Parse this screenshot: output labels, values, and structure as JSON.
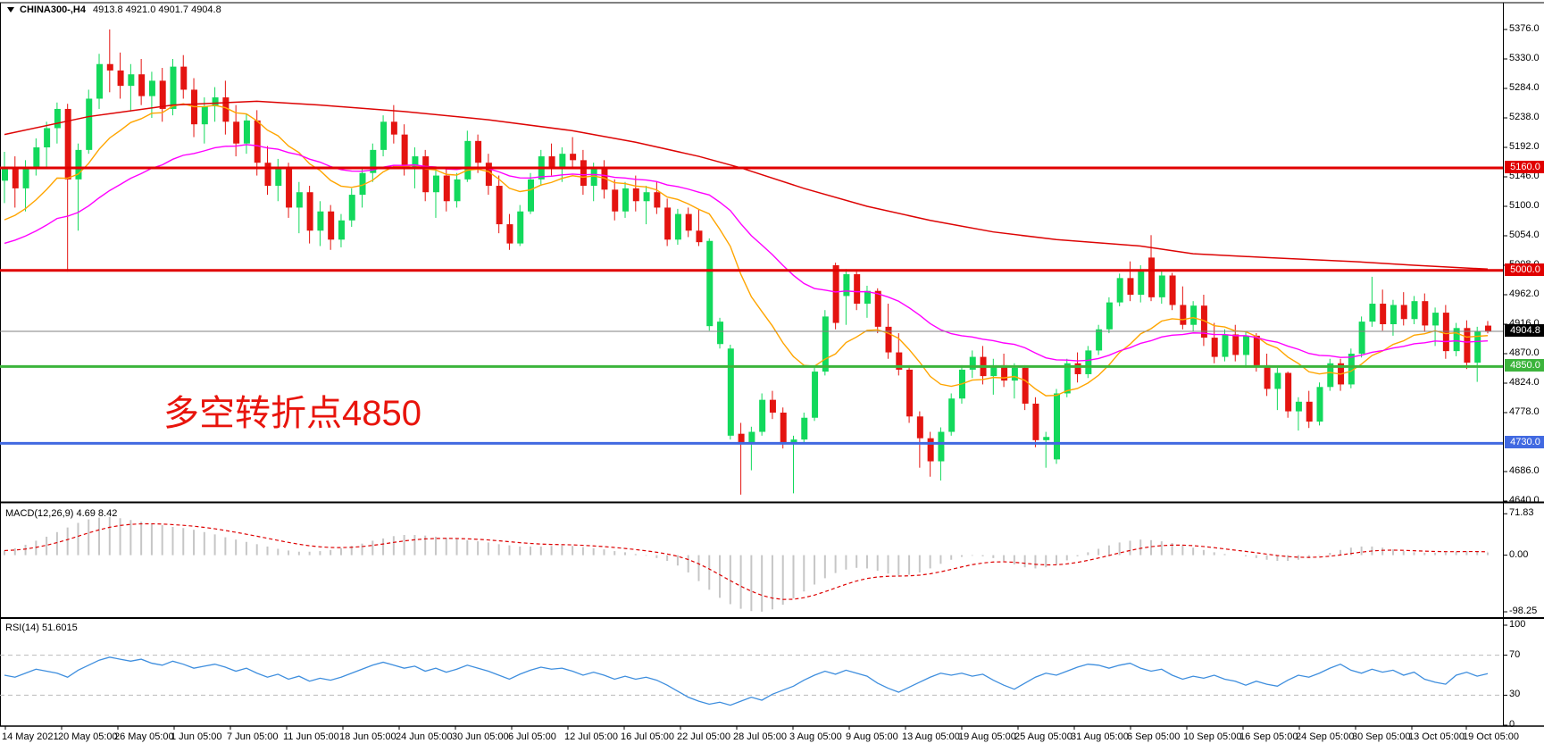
{
  "window": {
    "symbol_title": "CHINA300-,H4",
    "ohlc_readout": "4913.8 4921.0 4901.7 4904.8"
  },
  "annotation": {
    "text": "多空转折点4850"
  },
  "colors": {
    "bull": "#12d95c",
    "bear": "#e41410",
    "ma_fast": "#ffa500",
    "ma_mid": "#ff00ff",
    "ma_slow": "#dd0404",
    "level_red": "#e00000",
    "level_green": "#3cb43c",
    "level_blue": "#4169e1",
    "price_line": "#808080",
    "badge_price_bg": "#000000",
    "macd_hist": "#c6c6c6",
    "macd_signal": "#dd0000",
    "rsi_line": "#3e8ede",
    "rsi_level_dash": "#bbbbbb",
    "annotation_red": "#e8140c"
  },
  "chart_data": {
    "type": "candlestick",
    "symbol": "CHINA300-",
    "timeframe": "H4",
    "last_ohlc": {
      "open": 4913.8,
      "high": 4921.0,
      "low": 4901.7,
      "close": 4904.8
    },
    "price_ticks": [
      {
        "v": 5376,
        "t": "5376.0"
      },
      {
        "v": 5330,
        "t": "5330.0"
      },
      {
        "v": 5284,
        "t": "5284.0"
      },
      {
        "v": 5238,
        "t": "5238.0"
      },
      {
        "v": 5192,
        "t": "5192.0"
      },
      {
        "v": 5146,
        "t": "5146.0"
      },
      {
        "v": 5100,
        "t": "5100.0"
      },
      {
        "v": 5054,
        "t": "5054.0"
      },
      {
        "v": 5008,
        "t": "5008.0"
      },
      {
        "v": 4962,
        "t": "4962.0"
      },
      {
        "v": 4916,
        "t": "4916.0"
      },
      {
        "v": 4870,
        "t": "4870.0"
      },
      {
        "v": 4824,
        "t": "4824.0"
      },
      {
        "v": 4778,
        "t": "4778.0"
      },
      {
        "v": 4686,
        "t": "4686.0"
      },
      {
        "v": 4640,
        "t": "4640.0"
      }
    ],
    "hlines": [
      {
        "value": 5160.0,
        "label": "5160.0",
        "color": "#e00000",
        "width": 3,
        "badge_bg": "#e00000"
      },
      {
        "value": 5000.0,
        "label": "5000.0",
        "color": "#e00000",
        "width": 3,
        "badge_bg": "#e00000"
      },
      {
        "value": 4850.0,
        "label": "4850.0",
        "color": "#3cb43c",
        "width": 3,
        "badge_bg": "#3cb43c"
      },
      {
        "value": 4730.0,
        "label": "4730.0",
        "color": "#4169e1",
        "width": 3,
        "badge_bg": "#4169e1"
      }
    ],
    "current_price": {
      "value": 4904.8,
      "label": "4904.8",
      "line_color": "#808080",
      "badge_bg": "#000000"
    },
    "candles": [
      [
        5140,
        5185,
        5105,
        5162
      ],
      [
        5162,
        5178,
        5098,
        5128
      ],
      [
        5128,
        5172,
        5092,
        5160
      ],
      [
        5160,
        5206,
        5148,
        5192
      ],
      [
        5192,
        5232,
        5158,
        5222
      ],
      [
        5222,
        5262,
        5198,
        5252
      ],
      [
        5252,
        5260,
        4998,
        5142
      ],
      [
        5142,
        5198,
        5062,
        5188
      ],
      [
        5188,
        5282,
        5182,
        5268
      ],
      [
        5268,
        5338,
        5252,
        5322
      ],
      [
        5322,
        5376,
        5278,
        5312
      ],
      [
        5312,
        5340,
        5268,
        5288
      ],
      [
        5288,
        5322,
        5248,
        5306
      ],
      [
        5306,
        5330,
        5258,
        5272
      ],
      [
        5272,
        5310,
        5238,
        5296
      ],
      [
        5296,
        5316,
        5232,
        5252
      ],
      [
        5252,
        5330,
        5242,
        5318
      ],
      [
        5318,
        5336,
        5268,
        5282
      ],
      [
        5282,
        5300,
        5208,
        5228
      ],
      [
        5228,
        5270,
        5198,
        5256
      ],
      [
        5256,
        5286,
        5232,
        5270
      ],
      [
        5270,
        5296,
        5212,
        5232
      ],
      [
        5232,
        5258,
        5178,
        5198
      ],
      [
        5198,
        5244,
        5182,
        5234
      ],
      [
        5234,
        5250,
        5148,
        5168
      ],
      [
        5168,
        5194,
        5118,
        5132
      ],
      [
        5132,
        5174,
        5108,
        5158
      ],
      [
        5158,
        5168,
        5082,
        5098
      ],
      [
        5098,
        5138,
        5058,
        5122
      ],
      [
        5122,
        5132,
        5042,
        5062
      ],
      [
        5062,
        5108,
        5038,
        5092
      ],
      [
        5092,
        5102,
        5032,
        5048
      ],
      [
        5048,
        5088,
        5036,
        5078
      ],
      [
        5078,
        5128,
        5068,
        5118
      ],
      [
        5118,
        5162,
        5098,
        5152
      ],
      [
        5152,
        5198,
        5138,
        5188
      ],
      [
        5188,
        5242,
        5178,
        5232
      ],
      [
        5232,
        5258,
        5198,
        5212
      ],
      [
        5212,
        5228,
        5148,
        5162
      ],
      [
        5162,
        5192,
        5128,
        5178
      ],
      [
        5178,
        5188,
        5108,
        5122
      ],
      [
        5122,
        5158,
        5082,
        5148
      ],
      [
        5148,
        5162,
        5092,
        5108
      ],
      [
        5108,
        5152,
        5098,
        5142
      ],
      [
        5142,
        5218,
        5138,
        5202
      ],
      [
        5202,
        5212,
        5152,
        5168
      ],
      [
        5168,
        5182,
        5118,
        5132
      ],
      [
        5132,
        5148,
        5058,
        5072
      ],
      [
        5072,
        5088,
        5032,
        5042
      ],
      [
        5042,
        5102,
        5038,
        5092
      ],
      [
        5092,
        5152,
        5088,
        5142
      ],
      [
        5142,
        5188,
        5132,
        5178
      ],
      [
        5178,
        5198,
        5148,
        5162
      ],
      [
        5162,
        5192,
        5138,
        5182
      ],
      [
        5182,
        5208,
        5158,
        5172
      ],
      [
        5172,
        5188,
        5118,
        5132
      ],
      [
        5132,
        5168,
        5108,
        5158
      ],
      [
        5158,
        5172,
        5112,
        5126
      ],
      [
        5126,
        5142,
        5078,
        5092
      ],
      [
        5092,
        5138,
        5082,
        5128
      ],
      [
        5128,
        5148,
        5092,
        5108
      ],
      [
        5108,
        5132,
        5072,
        5122
      ],
      [
        5122,
        5138,
        5088,
        5098
      ],
      [
        5098,
        5112,
        5038,
        5048
      ],
      [
        5048,
        5096,
        5040,
        5088
      ],
      [
        5088,
        5098,
        5052,
        5062
      ],
      [
        5062,
        5096,
        5038,
        5044
      ],
      [
        4913,
        5050,
        4906,
        5046
      ],
      [
        4885,
        4926,
        4878,
        4920
      ],
      [
        4742,
        4884,
        4736,
        4878
      ],
      [
        4745,
        4762,
        4650,
        4732
      ],
      [
        4732,
        4756,
        4688,
        4748
      ],
      [
        4748,
        4808,
        4742,
        4798
      ],
      [
        4798,
        4812,
        4768,
        4778
      ],
      [
        4778,
        4786,
        4722,
        4730
      ],
      [
        4730,
        4742,
        4652,
        4736
      ],
      [
        4736,
        4778,
        4730,
        4770
      ],
      [
        4770,
        4852,
        4765,
        4842
      ],
      [
        4842,
        4938,
        4836,
        4928
      ],
      [
        5008,
        5012,
        4908,
        4918
      ],
      [
        4960,
        5002,
        4915,
        4994
      ],
      [
        4994,
        4998,
        4938,
        4948
      ],
      [
        4948,
        4976,
        4926,
        4968
      ],
      [
        4968,
        4972,
        4902,
        4912
      ],
      [
        4912,
        4948,
        4862,
        4872
      ],
      [
        4872,
        4902,
        4836,
        4845
      ],
      [
        4845,
        4852,
        4762,
        4772
      ],
      [
        4772,
        4780,
        4692,
        4738
      ],
      [
        4738,
        4748,
        4678,
        4702
      ],
      [
        4702,
        4755,
        4672,
        4748
      ],
      [
        4748,
        4808,
        4742,
        4800
      ],
      [
        4800,
        4852,
        4792,
        4845
      ],
      [
        4845,
        4875,
        4832,
        4865
      ],
      [
        4865,
        4882,
        4822,
        4835
      ],
      [
        4835,
        4862,
        4806,
        4852
      ],
      [
        4852,
        4870,
        4818,
        4828
      ],
      [
        4828,
        4855,
        4800,
        4848
      ],
      [
        4848,
        4852,
        4782,
        4792
      ],
      [
        4792,
        4802,
        4724,
        4735
      ],
      [
        4735,
        4748,
        4692,
        4740
      ],
      [
        4705,
        4815,
        4698,
        4808
      ],
      [
        4808,
        4862,
        4802,
        4855
      ],
      [
        4855,
        4872,
        4825,
        4838
      ],
      [
        4838,
        4882,
        4832,
        4875
      ],
      [
        4875,
        4915,
        4868,
        4908
      ],
      [
        4908,
        4958,
        4902,
        4950
      ],
      [
        4950,
        4995,
        4944,
        4988
      ],
      [
        4988,
        5014,
        4952,
        4962
      ],
      [
        4962,
        5008,
        4950,
        4998
      ],
      [
        5020,
        5055,
        4952,
        4958
      ],
      [
        4958,
        5000,
        4948,
        4992
      ],
      [
        4992,
        4996,
        4938,
        4946
      ],
      [
        4946,
        4975,
        4908,
        4915
      ],
      [
        4915,
        4952,
        4905,
        4945
      ],
      [
        4945,
        4962,
        4882,
        4895
      ],
      [
        4895,
        4918,
        4855,
        4865
      ],
      [
        4865,
        4908,
        4858,
        4900
      ],
      [
        4900,
        4915,
        4858,
        4868
      ],
      [
        4868,
        4905,
        4848,
        4898
      ],
      [
        4898,
        4902,
        4842,
        4852
      ],
      [
        4852,
        4870,
        4804,
        4815
      ],
      [
        4815,
        4848,
        4782,
        4840
      ],
      [
        4840,
        4842,
        4770,
        4780
      ],
      [
        4780,
        4802,
        4750,
        4795
      ],
      [
        4795,
        4812,
        4754,
        4764
      ],
      [
        4764,
        4825,
        4758,
        4818
      ],
      [
        4818,
        4862,
        4812,
        4855
      ],
      [
        4855,
        4862,
        4812,
        4822
      ],
      [
        4822,
        4878,
        4816,
        4870
      ],
      [
        4870,
        4928,
        4864,
        4920
      ],
      [
        4920,
        4990,
        4912,
        4948
      ],
      [
        4948,
        4970,
        4906,
        4916
      ],
      [
        4916,
        4954,
        4898,
        4946
      ],
      [
        4946,
        4966,
        4914,
        4924
      ],
      [
        4924,
        4960,
        4916,
        4952
      ],
      [
        4952,
        4964,
        4904,
        4914
      ],
      [
        4914,
        4942,
        4882,
        4934
      ],
      [
        4934,
        4946,
        4862,
        4874
      ],
      [
        4874,
        4918,
        4866,
        4910
      ],
      [
        4910,
        4922,
        4846,
        4856
      ],
      [
        4856,
        4912,
        4826,
        4905
      ],
      [
        4913.8,
        4921.0,
        4901.7,
        4904.8
      ]
    ],
    "ma_slow_waypoints": [
      [
        0,
        5212
      ],
      [
        8,
        5240
      ],
      [
        16,
        5258
      ],
      [
        24,
        5264
      ],
      [
        30,
        5258
      ],
      [
        38,
        5248
      ],
      [
        46,
        5235
      ],
      [
        54,
        5218
      ],
      [
        60,
        5200
      ],
      [
        66,
        5178
      ],
      [
        70,
        5160
      ],
      [
        76,
        5128
      ],
      [
        82,
        5100
      ],
      [
        88,
        5078
      ],
      [
        94,
        5060
      ],
      [
        100,
        5048
      ],
      [
        108,
        5038
      ],
      [
        113,
        5026
      ],
      [
        120,
        5020
      ],
      [
        128,
        5014
      ],
      [
        134,
        5008
      ],
      [
        141,
        5002
      ]
    ],
    "ema_fast_period": 13,
    "ema_fast_seed": 5065,
    "ema_mid_period": 34,
    "ema_mid_seed": 5035,
    "macd": {
      "label": "MACD(12,26,9) 4.69 8.42",
      "main_value": 4.69,
      "signal_value": 8.42,
      "ticks": [
        {
          "v": 71.83,
          "t": "71.83"
        },
        {
          "v": 0,
          "t": "0.00"
        },
        {
          "v": -98.25,
          "t": "-98.25"
        }
      ],
      "signal_period": 9,
      "hist": [
        8,
        12,
        18,
        25,
        32,
        40,
        48,
        56,
        62,
        65,
        66,
        64,
        61,
        58,
        55,
        52,
        49,
        47,
        44,
        40,
        36,
        31,
        27,
        23,
        19,
        15,
        11,
        8,
        6,
        6,
        7,
        9,
        12,
        16,
        20,
        25,
        29,
        33,
        35,
        35,
        34,
        32,
        30,
        28,
        26,
        24,
        22,
        19,
        17,
        15,
        15,
        15,
        16,
        17,
        16,
        14,
        12,
        10,
        7,
        5,
        2,
        -1,
        -5,
        -10,
        -18,
        -30,
        -45,
        -60,
        -74,
        -85,
        -93,
        -97,
        -98,
        -94,
        -86,
        -75,
        -63,
        -51,
        -40,
        -31,
        -25,
        -22,
        -23,
        -27,
        -32,
        -35,
        -34,
        -30,
        -23,
        -15,
        -8,
        -3,
        -1,
        -2,
        -5,
        -10,
        -16,
        -21,
        -23,
        -21,
        -16,
        -9,
        -2,
        5,
        11,
        17,
        22,
        25,
        27,
        26,
        24,
        21,
        17,
        13,
        9,
        5,
        2,
        0,
        -2,
        -5,
        -8,
        -10,
        -10,
        -8,
        -5,
        -1,
        4,
        9,
        13,
        15,
        15,
        13,
        10,
        7,
        5,
        4,
        4,
        5,
        6,
        7,
        6,
        4.69
      ]
    },
    "rsi": {
      "label": "RSI(14) 51.6015",
      "value": 51.6015,
      "ticks": [
        {
          "v": 100,
          "t": "100"
        },
        {
          "v": 70,
          "t": "70"
        },
        {
          "v": 30,
          "t": "30"
        },
        {
          "v": 0,
          "t": "0"
        }
      ],
      "levels": [
        70,
        30
      ],
      "values": [
        50,
        48,
        52,
        56,
        54,
        52,
        48,
        55,
        60,
        65,
        68,
        66,
        64,
        66,
        62,
        60,
        64,
        61,
        57,
        59,
        61,
        58,
        54,
        57,
        52,
        48,
        51,
        46,
        49,
        44,
        47,
        45,
        48,
        52,
        56,
        60,
        63,
        60,
        57,
        59,
        54,
        57,
        53,
        56,
        60,
        57,
        54,
        50,
        46,
        51,
        55,
        58,
        56,
        57,
        54,
        50,
        53,
        50,
        46,
        49,
        46,
        48,
        45,
        40,
        34,
        28,
        24,
        21,
        23,
        20,
        24,
        28,
        25,
        31,
        35,
        39,
        45,
        50,
        54,
        51,
        55,
        52,
        49,
        42,
        37,
        33,
        38,
        43,
        48,
        52,
        50,
        52,
        49,
        51,
        45,
        40,
        36,
        42,
        48,
        52,
        50,
        54,
        58,
        61,
        60,
        57,
        60,
        62,
        57,
        54,
        56,
        50,
        46,
        49,
        47,
        50,
        46,
        44,
        40,
        44,
        41,
        39,
        45,
        50,
        48,
        52,
        57,
        61,
        55,
        52,
        56,
        53,
        55,
        50,
        53,
        46,
        43,
        41,
        50,
        53,
        49,
        51.6
      ]
    },
    "time_labels": [
      "14 May 2021",
      "20 May 05:00",
      "26 May 05:00",
      "1 Jun 05:00",
      "7 Jun 05:00",
      "11 Jun 05:00",
      "18 Jun 05:00",
      "24 Jun 05:00",
      "30 Jun 05:00",
      "6 Jul 05:00",
      "12 Jul 05:00",
      "16 Jul 05:00",
      "22 Jul 05:00",
      "28 Jul 05:00",
      "3 Aug 05:00",
      "9 Aug 05:00",
      "13 Aug 05:00",
      "19 Aug 05:00",
      "25 Aug 05:00",
      "31 Aug 05:00",
      "6 Sep 05:00",
      "10 Sep 05:00",
      "16 Sep 05:00",
      "24 Sep 05:00",
      "30 Sep 05:00",
      "13 Oct 05:00",
      "19 Oct 05:00"
    ]
  }
}
